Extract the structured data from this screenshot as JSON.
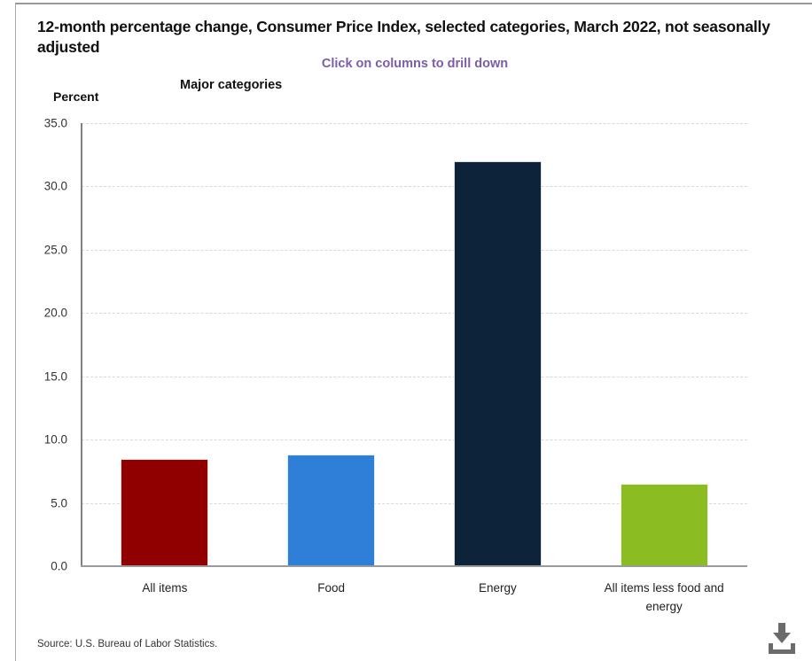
{
  "header": {
    "title": "12-month percentage change, Consumer Price Index, selected categories, March 2022, not seasonally adjusted",
    "subtitle": "Click on columns to drill down",
    "category_axis_title": "Major categories",
    "value_axis_unit": "Percent"
  },
  "footer": {
    "source": "Source: U.S. Bureau of Labor Statistics.",
    "download_icon": "download-icon"
  },
  "chart_data": {
    "type": "bar",
    "title": "Major categories",
    "ylabel": "Percent",
    "categories": [
      "All items",
      "Food",
      "Energy",
      "All items less food and energy"
    ],
    "values": [
      8.5,
      8.8,
      32.0,
      6.5
    ],
    "bar_colors": [
      "#910000",
      "#2f7ed8",
      "#0d233a",
      "#8bbc21"
    ],
    "ylim": [
      0,
      35
    ],
    "ytick_step": 5,
    "ytick_decimals": 1,
    "grid": "horizontal-dashed",
    "legend": "none"
  },
  "colors": {
    "subtitle_text": "#7b5ea7",
    "gridline": "#d9d9d9",
    "axis_line": "#808080",
    "baseline": "#9a9a9a",
    "panel_border": "#999999",
    "icon": "#6b6b6b"
  }
}
